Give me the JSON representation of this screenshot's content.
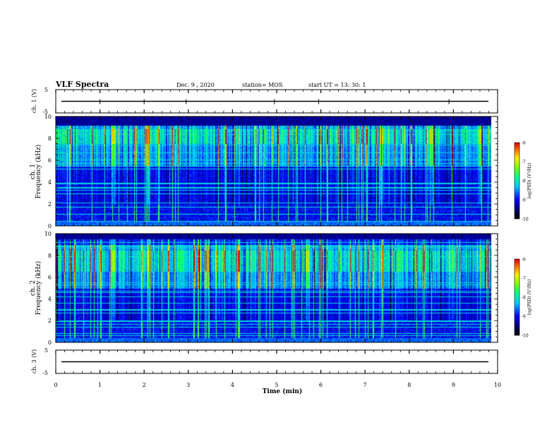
{
  "header": {
    "title": "VLF Spectra",
    "date": "Dec. 9 , 2020",
    "station": "station= MOS",
    "start": "start UT = 13: 30: 1"
  },
  "chart_data": [
    {
      "type": "line",
      "panel": "ch1-voltage",
      "ylabel": "ch. 1 (V)",
      "yticks": [
        "5",
        "-5"
      ],
      "ylim": [
        -5,
        5
      ],
      "series_level": 0.0,
      "spikes_min": [
        1.0,
        2.0,
        2.95,
        4.95,
        5.95,
        8.9
      ]
    },
    {
      "type": "heatmap",
      "panel": "ch1-spectrogram",
      "ylabel": "Frequency (kHz)",
      "channel_label": "ch. 1",
      "yticks": [
        "0",
        "2",
        "4",
        "6",
        "8",
        "10"
      ],
      "ylim": [
        0,
        10
      ],
      "xlim": [
        0,
        10
      ],
      "data_end_min": 9.85,
      "colorbar": {
        "label": "log(PSD) (V²/Hz)",
        "ticks": [
          "-6",
          "-7",
          "-8",
          "-9",
          "-10"
        ],
        "range": [
          -10,
          -6
        ]
      },
      "features": {
        "hiss_band_khz": [
          5.5,
          9.2
        ],
        "strong_band_khz": [
          7.5,
          8.9
        ],
        "noise_top_khz": 9.2,
        "bursts_min": [
          1.3,
          2.1,
          7.35,
          8.5,
          9.6
        ]
      }
    },
    {
      "type": "heatmap",
      "panel": "ch2-spectrogram",
      "ylabel": "Frequency (kHz)",
      "channel_label": "ch. 2",
      "yticks": [
        "0",
        "2",
        "4",
        "6",
        "8",
        "10"
      ],
      "ylim": [
        0,
        10
      ],
      "xlim": [
        0,
        10
      ],
      "data_end_min": 9.85,
      "colorbar": {
        "label": "log(PSD) (V²/Hz)",
        "ticks": [
          "-6",
          "-7",
          "-8",
          "-9",
          "-10"
        ],
        "range": [
          -10,
          -6
        ]
      },
      "features": {
        "hiss_band_khz": [
          5.0,
          9.0
        ],
        "strong_band_khz": [
          6.5,
          8.5
        ],
        "noise_top_khz": 9.5,
        "bursts_min": [
          1.3,
          2.1,
          5.7,
          7.35
        ]
      }
    },
    {
      "type": "line",
      "panel": "ch3-voltage",
      "ylabel": "ch. 3 (V)",
      "yticks": [
        "5",
        "-5"
      ],
      "ylim": [
        -5,
        5
      ],
      "series_level": 0.0
    }
  ],
  "xaxis": {
    "label": "Time (min)",
    "ticks": [
      "0",
      "1",
      "2",
      "3",
      "4",
      "5",
      "6",
      "7",
      "8",
      "9",
      "10"
    ],
    "range": [
      0,
      10
    ]
  }
}
